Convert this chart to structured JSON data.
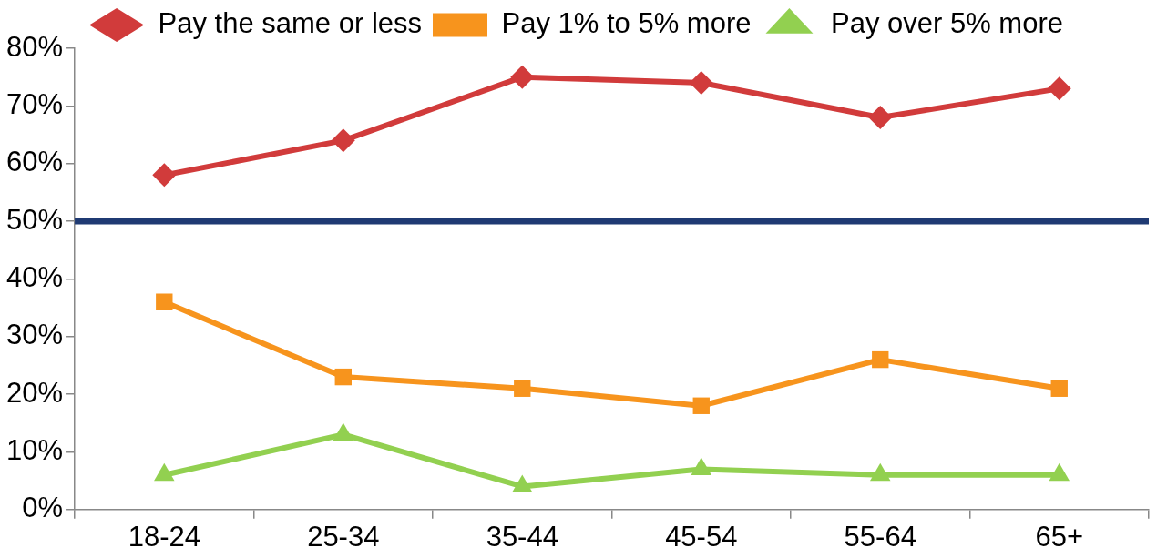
{
  "chart_data": {
    "type": "line",
    "categories": [
      "18-24",
      "25-34",
      "35-44",
      "45-54",
      "55-64",
      "65+"
    ],
    "series": [
      {
        "name": "Pay the same or less",
        "color": "#d13b3b",
        "marker": "diamond",
        "values": [
          58,
          64,
          75,
          74,
          68,
          73
        ]
      },
      {
        "name": "Pay 1% to 5% more",
        "color": "#f7941d",
        "marker": "square",
        "values": [
          36,
          23,
          21,
          18,
          26,
          21
        ]
      },
      {
        "name": "Pay over 5% more",
        "color": "#92d050",
        "marker": "triangle",
        "values": [
          6,
          13,
          4,
          7,
          6,
          6
        ]
      }
    ],
    "ylim": [
      0,
      80
    ],
    "yticks": [
      {
        "value": 0,
        "label": "0%"
      },
      {
        "value": 10,
        "label": "10%"
      },
      {
        "value": 20,
        "label": "20%"
      },
      {
        "value": 30,
        "label": "30%"
      },
      {
        "value": 40,
        "label": "40%"
      },
      {
        "value": 50,
        "label": "50%"
      },
      {
        "value": 60,
        "label": "60%"
      },
      {
        "value": 70,
        "label": "70%"
      },
      {
        "value": 80,
        "label": "80%"
      }
    ],
    "ref_lines": [
      {
        "axis": "y",
        "value": 50,
        "color": "#1f3a73"
      }
    ],
    "grid": false,
    "legend": "top",
    "line_style": "solid"
  }
}
